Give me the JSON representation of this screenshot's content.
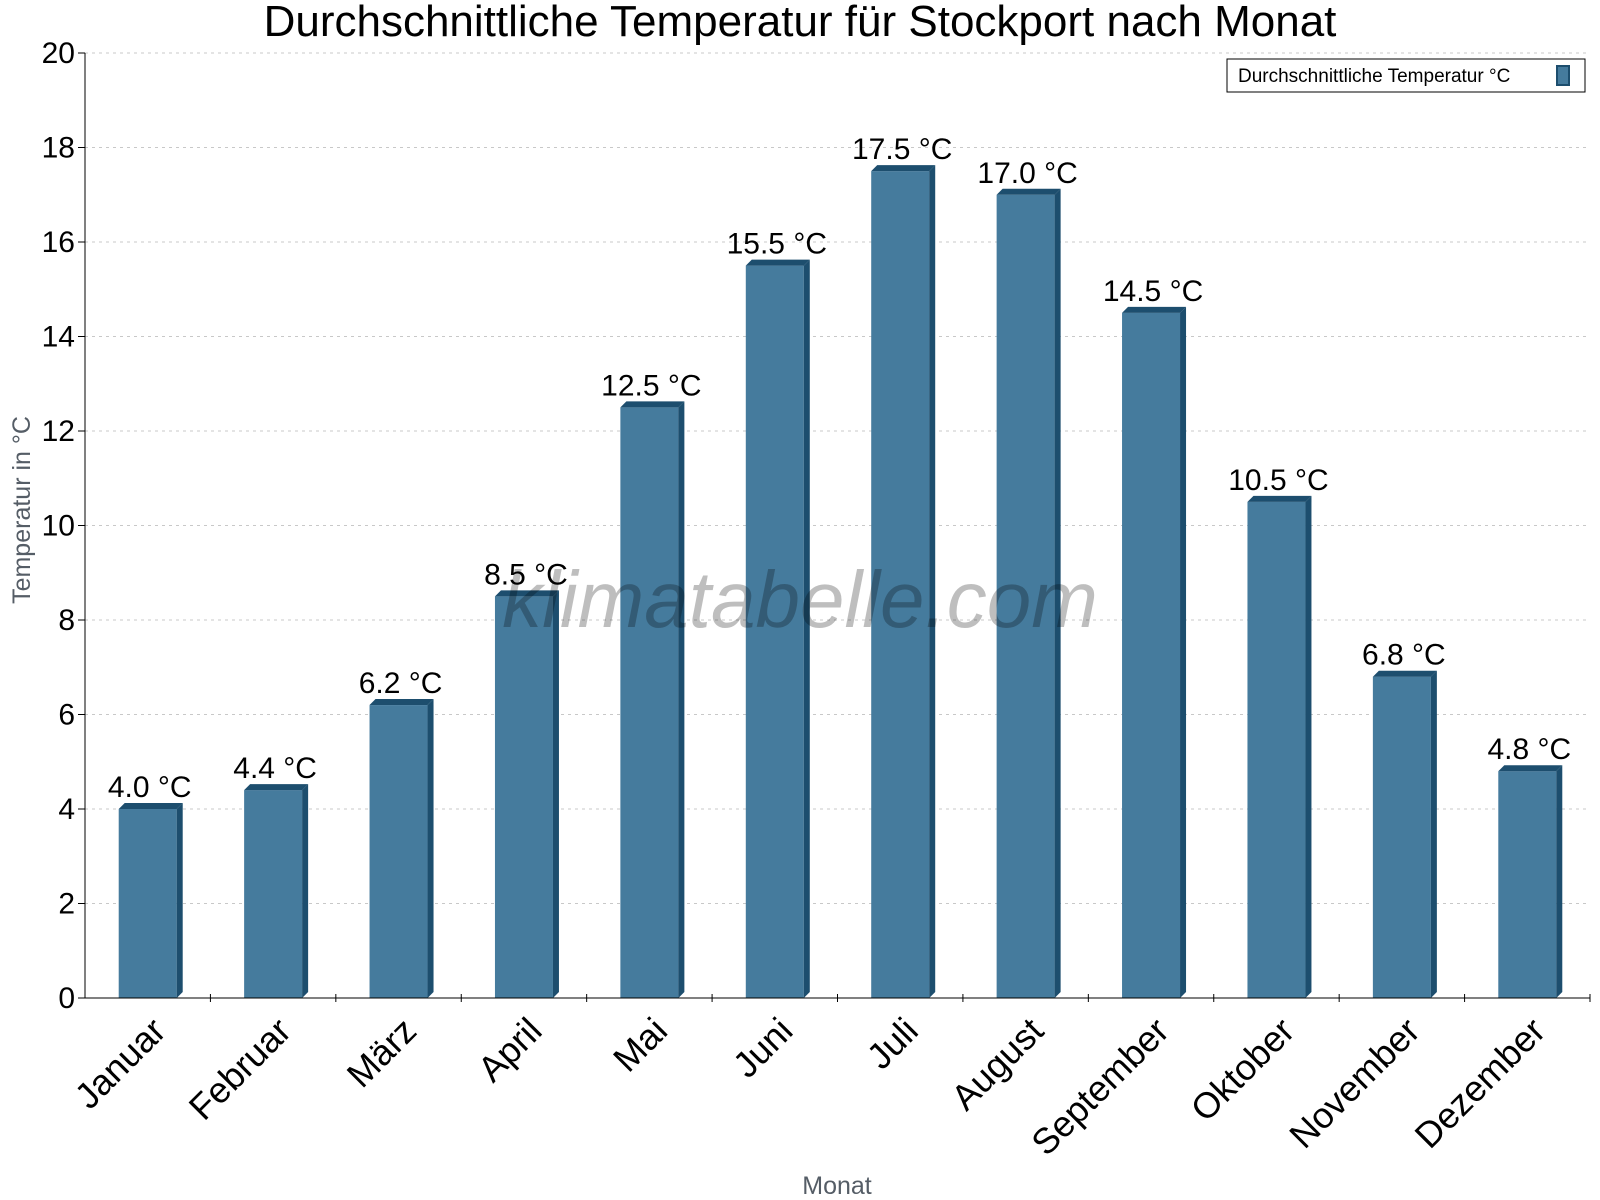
{
  "chart_data": {
    "type": "bar",
    "title": "Durchschnittliche Temperatur für Stockport nach Monat",
    "xlabel": "Monat",
    "ylabel": "Temperatur in °C",
    "categories": [
      "Januar",
      "Februar",
      "März",
      "April",
      "Mai",
      "Juni",
      "Juli",
      "August",
      "September",
      "Oktober",
      "November",
      "Dezember"
    ],
    "series": [
      {
        "name": "Durchschnittliche Temperatur °C",
        "values": [
          4.0,
          4.4,
          6.2,
          8.5,
          12.5,
          15.5,
          17.5,
          17.0,
          14.5,
          10.5,
          6.8,
          4.8
        ],
        "labels": [
          "4.0 °C",
          "4.4 °C",
          "6.2 °C",
          "8.5 °C",
          "12.5 °C",
          "15.5 °C",
          "17.5 °C",
          "17.0 °C",
          "14.5 °C",
          "10.5 °C",
          "6.8 °C",
          "4.8 °C"
        ]
      }
    ],
    "ylim": [
      0,
      20
    ],
    "yticks": [
      "0",
      "2",
      "4",
      "6",
      "8",
      "10",
      "12",
      "14",
      "16",
      "18",
      "20"
    ],
    "grid": true,
    "legend_position": "top-right",
    "colors": {
      "bar": "#457b9d",
      "bar_side": "#1d4e6e",
      "bar_top": "#1d4e6e",
      "grid": "#c8c8c8"
    }
  },
  "watermark": "klimatabelle.com"
}
